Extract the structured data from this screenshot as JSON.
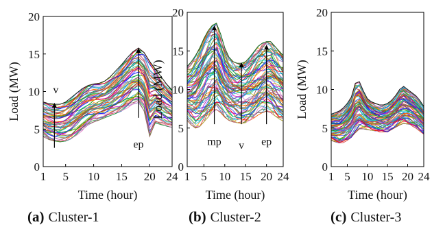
{
  "chart_data": [
    {
      "type": "line",
      "panel_label": "(a)",
      "caption": "Cluster-1",
      "xlabel": "Time (hour)",
      "ylabel": "Load (MW)",
      "xlim": [
        1,
        24
      ],
      "ylim": [
        0,
        20
      ],
      "xticks": [
        1,
        5,
        10,
        15,
        20,
        24
      ],
      "xtick_labels": [
        "1",
        "5",
        "10",
        "15",
        "20",
        "24"
      ],
      "yticks": [
        0,
        5,
        10,
        15,
        20
      ],
      "ytick_labels": [
        "0",
        "5",
        "10",
        "15",
        "20"
      ],
      "n_series": 60,
      "envelope": {
        "hours": [
          1,
          2,
          3,
          4,
          5,
          6,
          7,
          8,
          9,
          10,
          11,
          12,
          13,
          14,
          15,
          16,
          17,
          18,
          19,
          20,
          21,
          22,
          23,
          24
        ],
        "upper": [
          8.6,
          8.4,
          8.3,
          8.3,
          8.6,
          9.2,
          9.8,
          10.4,
          10.8,
          11.0,
          11.1,
          11.4,
          12.0,
          12.8,
          13.6,
          14.5,
          15.3,
          15.8,
          15.2,
          14.0,
          13.0,
          12.0,
          11.0,
          10.2
        ],
        "lower": [
          4.0,
          3.6,
          3.4,
          3.3,
          3.4,
          3.7,
          4.2,
          4.8,
          5.4,
          5.9,
          6.2,
          6.5,
          6.8,
          7.1,
          7.4,
          7.8,
          8.2,
          8.5,
          7.4,
          4.0,
          5.8,
          5.6,
          5.4,
          5.2
        ],
        "mean": [
          5.8,
          5.4,
          5.2,
          5.1,
          5.3,
          5.8,
          6.5,
          7.2,
          7.9,
          8.4,
          8.7,
          9.0,
          9.5,
          10.2,
          11.0,
          11.8,
          12.6,
          13.0,
          12.5,
          11.6,
          10.8,
          10.0,
          9.3,
          8.7
        ]
      },
      "annotations": [
        {
          "label": "v",
          "x": 3,
          "y_from": 2.5,
          "y_to": 8.5
        },
        {
          "label": "ep",
          "x": 18,
          "y_from": 6.5,
          "y_to": 15.8
        }
      ],
      "grid": false,
      "legend": "none"
    },
    {
      "type": "line",
      "panel_label": "(b)",
      "caption": "Cluster-2",
      "xlabel": "Time (hour)",
      "ylabel": "Load (MW)",
      "xlim": [
        1,
        24
      ],
      "ylim": [
        0,
        20
      ],
      "xticks": [
        1,
        5,
        10,
        15,
        20,
        24
      ],
      "xtick_labels": [
        "1",
        "5",
        "10",
        "15",
        "20",
        "24"
      ],
      "yticks": [
        0,
        5,
        10,
        15,
        20
      ],
      "ytick_labels": [
        "0",
        "5",
        "10",
        "15",
        "20"
      ],
      "n_series": 80,
      "envelope": {
        "hours": [
          1,
          2,
          3,
          4,
          5,
          6,
          7,
          8,
          9,
          10,
          11,
          12,
          13,
          14,
          15,
          16,
          17,
          18,
          19,
          20,
          21,
          22,
          23,
          24
        ],
        "upper": [
          13.0,
          13.6,
          14.4,
          15.4,
          16.6,
          17.6,
          18.3,
          18.6,
          17.2,
          15.4,
          14.2,
          13.6,
          13.4,
          13.4,
          13.6,
          14.2,
          14.9,
          15.6,
          16.0,
          16.2,
          16.2,
          15.6,
          15.0,
          14.4
        ],
        "lower": [
          6.0,
          5.4,
          5.0,
          5.2,
          5.8,
          6.4,
          7.0,
          7.4,
          7.0,
          6.4,
          6.0,
          5.8,
          5.7,
          5.6,
          5.7,
          6.0,
          6.3,
          6.7,
          7.0,
          7.2,
          7.0,
          6.6,
          6.2,
          5.9
        ],
        "mean": [
          8.6,
          8.4,
          8.6,
          9.4,
          10.6,
          12.0,
          13.4,
          14.2,
          13.0,
          11.4,
          10.2,
          9.6,
          9.2,
          8.8,
          9.0,
          9.6,
          10.6,
          11.6,
          12.3,
          12.6,
          12.0,
          11.2,
          10.4,
          9.8
        ]
      },
      "annotations": [
        {
          "label": "mp",
          "x": 7.5,
          "y_from": 5.5,
          "y_to": 18.3
        },
        {
          "label": "v",
          "x": 14,
          "y_from": 5.5,
          "y_to": 13.5
        },
        {
          "label": "ep",
          "x": 20,
          "y_from": 5.5,
          "y_to": 15.8
        }
      ],
      "grid": false,
      "legend": "none"
    },
    {
      "type": "line",
      "panel_label": "(c)",
      "caption": "Cluster-3",
      "xlabel": "Time (hour)",
      "ylabel": "Load (MW)",
      "xlim": [
        1,
        24
      ],
      "ylim": [
        0,
        20
      ],
      "xticks": [
        1,
        5,
        10,
        15,
        20,
        24
      ],
      "xtick_labels": [
        "1",
        "5",
        "10",
        "15",
        "20",
        "24"
      ],
      "yticks": [
        0,
        5,
        10,
        15,
        20
      ],
      "ytick_labels": [
        "0",
        "5",
        "10",
        "15",
        "20"
      ],
      "n_series": 80,
      "envelope": {
        "hours": [
          1,
          2,
          3,
          4,
          5,
          6,
          7,
          8,
          9,
          10,
          11,
          12,
          13,
          14,
          15,
          16,
          17,
          18,
          19,
          20,
          21,
          22,
          23,
          24
        ],
        "upper": [
          6.8,
          7.0,
          7.2,
          7.6,
          8.2,
          9.0,
          10.8,
          11.0,
          9.8,
          8.8,
          8.4,
          8.2,
          8.0,
          8.0,
          8.2,
          8.6,
          9.2,
          10.0,
          10.4,
          10.0,
          9.6,
          9.2,
          8.6,
          7.8
        ],
        "lower": [
          3.4,
          3.2,
          3.0,
          3.1,
          3.4,
          3.8,
          4.4,
          4.9,
          4.9,
          4.8,
          4.7,
          4.6,
          4.5,
          4.5,
          4.5,
          4.8,
          5.1,
          5.4,
          5.6,
          5.5,
          5.3,
          5.0,
          4.6,
          4.2
        ],
        "mean": [
          4.8,
          4.6,
          4.6,
          4.9,
          5.4,
          6.0,
          6.8,
          7.2,
          7.0,
          6.6,
          6.4,
          6.2,
          6.1,
          6.1,
          6.3,
          6.7,
          7.3,
          7.9,
          8.3,
          8.2,
          7.8,
          7.3,
          6.6,
          5.9
        ]
      },
      "annotations": [],
      "grid": false,
      "legend": "none"
    }
  ]
}
